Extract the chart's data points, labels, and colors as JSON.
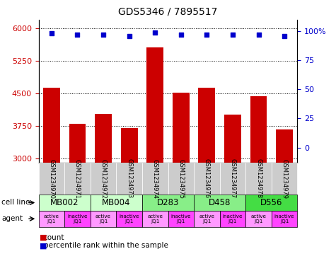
{
  "title": "GDS5346 / 7895517",
  "samples": [
    "GSM1234970",
    "GSM1234971",
    "GSM1234972",
    "GSM1234973",
    "GSM1234974",
    "GSM1234975",
    "GSM1234976",
    "GSM1234977",
    "GSM1234978",
    "GSM1234979"
  ],
  "bar_values": [
    4620,
    3790,
    4020,
    3700,
    5550,
    4520,
    4630,
    4000,
    4430,
    3660
  ],
  "percentile_values": [
    98,
    97,
    97,
    96,
    99,
    97,
    97,
    97,
    97,
    96
  ],
  "ylim_left": [
    2900,
    6200
  ],
  "ylim_right": [
    -13,
    110
  ],
  "yticks_left": [
    3000,
    3750,
    4500,
    5250,
    6000
  ],
  "yticks_right": [
    0,
    25,
    50,
    75,
    100
  ],
  "bar_color": "#cc0000",
  "dot_color": "#0000cc",
  "cell_lines": [
    {
      "label": "MB002",
      "start": 0,
      "end": 2,
      "color": "#ccffcc"
    },
    {
      "label": "MB004",
      "start": 2,
      "end": 4,
      "color": "#ccffcc"
    },
    {
      "label": "D283",
      "start": 4,
      "end": 6,
      "color": "#88ee88"
    },
    {
      "label": "D458",
      "start": 6,
      "end": 8,
      "color": "#88ee88"
    },
    {
      "label": "D556",
      "start": 8,
      "end": 10,
      "color": "#44dd44"
    }
  ],
  "agents": [
    {
      "label": "active\nJQ1",
      "color": "#ff99ff"
    },
    {
      "label": "inactive\nJQ1",
      "color": "#ff44ff"
    },
    {
      "label": "active\nJQ1",
      "color": "#ff99ff"
    },
    {
      "label": "inactive\nJQ1",
      "color": "#ff44ff"
    },
    {
      "label": "active\nJQ1",
      "color": "#ff99ff"
    },
    {
      "label": "inactive\nJQ1",
      "color": "#ff44ff"
    },
    {
      "label": "active\nJQ1",
      "color": "#ff99ff"
    },
    {
      "label": "inactive\nJQ1",
      "color": "#ff44ff"
    },
    {
      "label": "active\nJQ1",
      "color": "#ff99ff"
    },
    {
      "label": "inactive\nJQ1",
      "color": "#ff44ff"
    }
  ],
  "legend_count_color": "#cc0000",
  "legend_dot_color": "#0000cc",
  "bg_color": "#ffffff",
  "grid_color": "#000000",
  "tick_color_left": "#cc0000",
  "tick_color_right": "#0000cc",
  "xtick_bg_color": "#cccccc"
}
